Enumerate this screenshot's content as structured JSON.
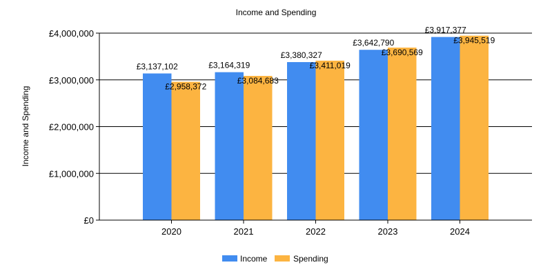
{
  "chart_data": {
    "type": "bar",
    "title": "Income and Spending",
    "ylabel": "Income and Spending",
    "xlabel": "",
    "categories": [
      "2020",
      "2021",
      "2022",
      "2023",
      "2024"
    ],
    "series": [
      {
        "name": "Income",
        "color": "#418cf0",
        "values": [
          3137102,
          3164319,
          3380327,
          3642790,
          3917377
        ],
        "labels": [
          "£3,137,102",
          "£3,164,319",
          "£3,380,327",
          "£3,642,790",
          "£3,917,377"
        ]
      },
      {
        "name": "Spending",
        "color": "#fcb441",
        "values": [
          2958372,
          3084683,
          3411019,
          3690569,
          3945519
        ],
        "labels": [
          "£2,958,372",
          "£3,084,683",
          "£3,411,019",
          "£3,690,569",
          "£3,945,519"
        ]
      }
    ],
    "ylim": [
      0,
      4000000
    ],
    "yticks": [
      0,
      1000000,
      2000000,
      3000000,
      4000000
    ],
    "ytick_labels": [
      "£0",
      "£1,000,000",
      "£2,000,000",
      "£3,000,000",
      "£4,000,000"
    ],
    "grid": true,
    "legend_position": "bottom-center"
  }
}
